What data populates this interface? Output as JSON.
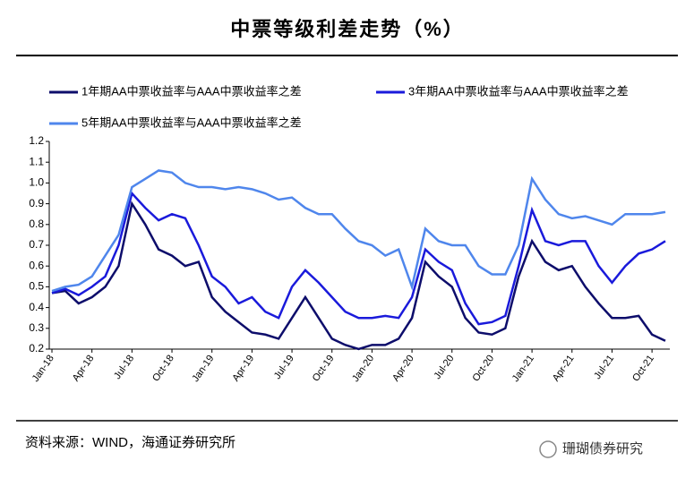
{
  "chart_data": {
    "type": "line",
    "title": "中票等级利差走势（%）",
    "source": "资料来源：WIND，海通证券研究所",
    "watermark": "珊瑚债券研究",
    "categories": [
      "Jan-18",
      null,
      null,
      "Apr-18",
      null,
      null,
      "Jul-18",
      null,
      null,
      "Oct-18",
      null,
      null,
      "Jan-19",
      null,
      null,
      "Apr-19",
      null,
      null,
      "Jul-19",
      null,
      null,
      "Oct-19",
      null,
      null,
      "Jan-20",
      null,
      null,
      "Apr-20",
      null,
      null,
      "Jul-20",
      null,
      null,
      "Oct-20",
      null,
      null,
      "Jan-21",
      null,
      null,
      "Apr-21",
      null,
      null,
      "Jul-21",
      null,
      null,
      "Oct-21",
      null
    ],
    "series": [
      {
        "name": "1年期AA中票收益率与AAA中票收益率之差",
        "color": "#0d0d6b",
        "values": [
          0.47,
          0.48,
          0.42,
          0.45,
          0.5,
          0.6,
          0.9,
          0.8,
          0.68,
          0.65,
          0.6,
          0.62,
          0.45,
          0.38,
          0.33,
          0.28,
          0.27,
          0.25,
          0.35,
          0.45,
          0.35,
          0.25,
          0.22,
          0.2,
          0.22,
          0.22,
          0.25,
          0.35,
          0.62,
          0.55,
          0.5,
          0.35,
          0.28,
          0.27,
          0.3,
          0.55,
          0.72,
          0.62,
          0.58,
          0.6,
          0.5,
          0.42,
          0.35,
          0.35,
          0.36,
          0.27,
          0.24
        ]
      },
      {
        "name": "3年期AA中票收益率与AAA中票收益率之差",
        "color": "#1a1adb",
        "values": [
          0.47,
          0.49,
          0.46,
          0.5,
          0.55,
          0.7,
          0.95,
          0.88,
          0.82,
          0.85,
          0.83,
          0.7,
          0.55,
          0.5,
          0.42,
          0.45,
          0.38,
          0.35,
          0.5,
          0.58,
          0.52,
          0.45,
          0.38,
          0.35,
          0.35,
          0.36,
          0.35,
          0.45,
          0.68,
          0.62,
          0.58,
          0.42,
          0.32,
          0.33,
          0.36,
          0.6,
          0.87,
          0.72,
          0.7,
          0.72,
          0.72,
          0.6,
          0.52,
          0.6,
          0.66,
          0.68,
          0.72
        ]
      },
      {
        "name": "5年期AA中票收益率与AAA中票收益率之差",
        "color": "#4f86ec",
        "values": [
          0.48,
          0.5,
          0.51,
          0.55,
          0.65,
          0.75,
          0.98,
          1.02,
          1.06,
          1.05,
          1.0,
          0.98,
          0.98,
          0.97,
          0.98,
          0.97,
          0.95,
          0.92,
          0.93,
          0.88,
          0.85,
          0.85,
          0.78,
          0.72,
          0.7,
          0.65,
          0.68,
          0.5,
          0.78,
          0.72,
          0.7,
          0.7,
          0.6,
          0.56,
          0.56,
          0.7,
          1.02,
          0.92,
          0.85,
          0.83,
          0.84,
          0.82,
          0.8,
          0.85,
          0.85,
          0.85,
          0.86
        ]
      }
    ],
    "ylim": [
      0.2,
      1.2
    ],
    "yticks": [
      0.2,
      0.3,
      0.4,
      0.5,
      0.6,
      0.7,
      0.8,
      0.9,
      {
        "value": 1,
        "label": "1.0"
      },
      1.1,
      1.2
    ],
    "grid": false
  }
}
